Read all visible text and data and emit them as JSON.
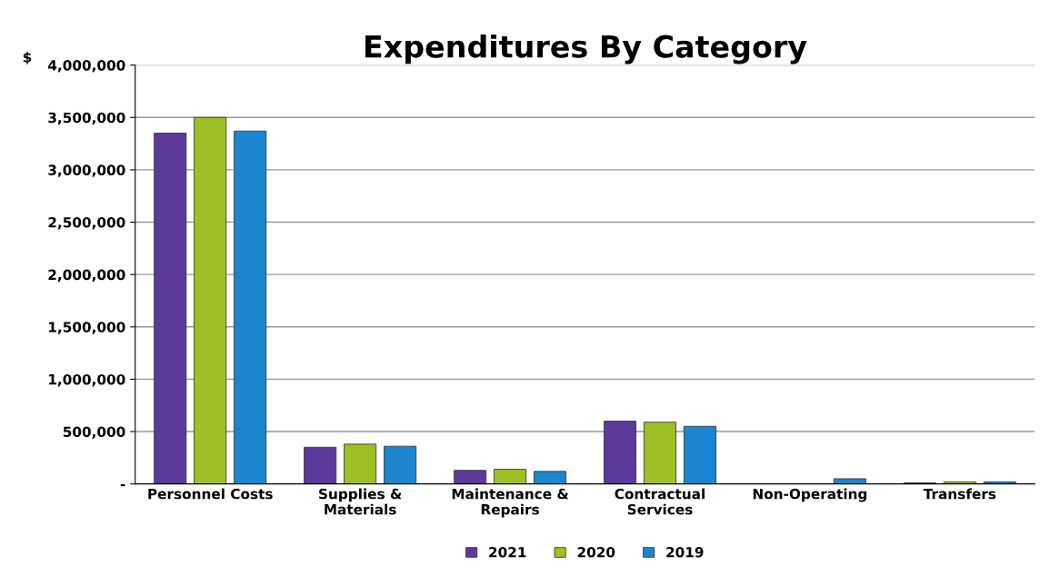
{
  "chart_data": {
    "type": "bar",
    "title": "Expenditures By Category",
    "ylabel": "$",
    "categories": [
      "Personnel Costs",
      "Supplies &\nMaterials",
      "Maintenance &\nRepairs",
      "Contractual\nServices",
      "Non-Operating",
      "Transfers"
    ],
    "series": [
      {
        "name": "2021",
        "color": "#5b3a9b",
        "values": [
          3350000,
          350000,
          130000,
          600000,
          null,
          10000
        ]
      },
      {
        "name": "2020",
        "color": "#9ec024",
        "values": [
          3500000,
          380000,
          140000,
          590000,
          null,
          20000
        ]
      },
      {
        "name": "2019",
        "color": "#1a86d0",
        "values": [
          3370000,
          360000,
          120000,
          550000,
          50000,
          20000
        ]
      }
    ],
    "ylim": [
      0,
      4000000
    ],
    "yticks": [
      {
        "value": 0,
        "label": "-"
      },
      {
        "value": 500000,
        "label": "500,000"
      },
      {
        "value": 1000000,
        "label": "1,000,000"
      },
      {
        "value": 1500000,
        "label": "1,500,000"
      },
      {
        "value": 2000000,
        "label": "2,000,000"
      },
      {
        "value": 2500000,
        "label": "2,500,000"
      },
      {
        "value": 3000000,
        "label": "3,000,000"
      },
      {
        "value": 3500000,
        "label": "3,500,000"
      },
      {
        "value": 4000000,
        "label": "4,000,000"
      }
    ],
    "grid": "y",
    "legend": "bottom"
  }
}
